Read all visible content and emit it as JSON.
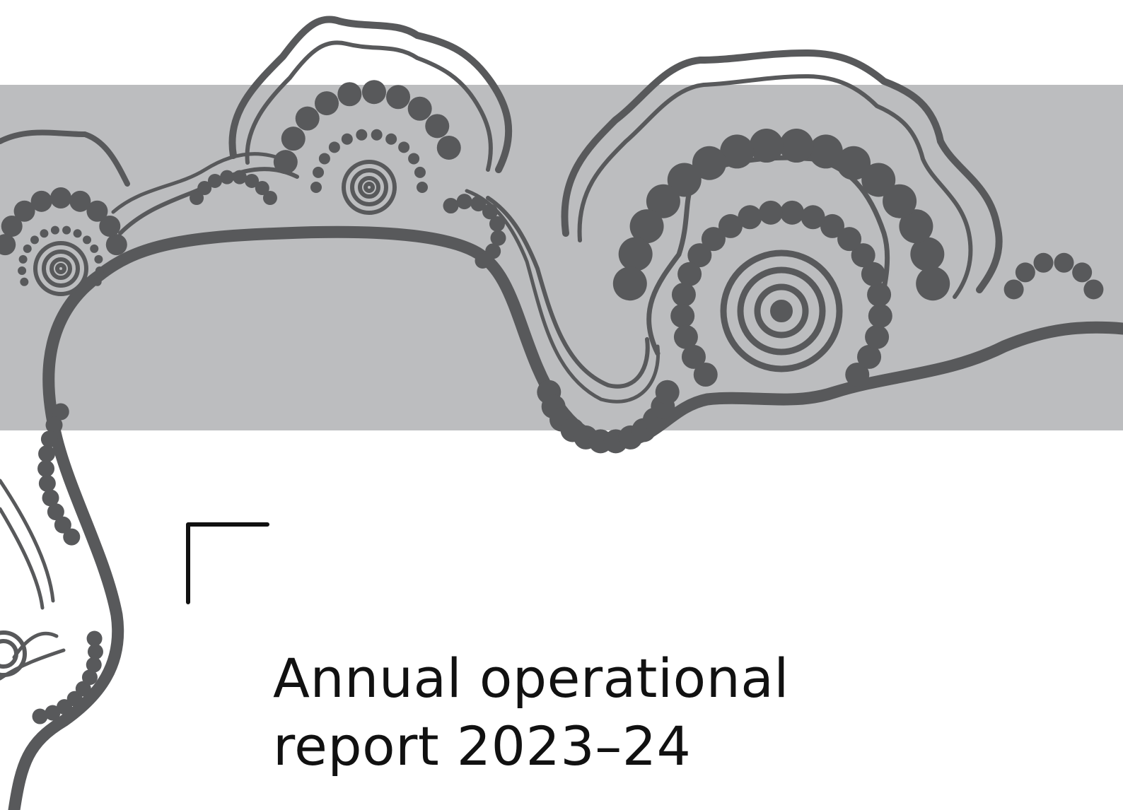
{
  "title": {
    "lines": [
      "Annual operational",
      "report 2023–24"
    ]
  }
}
